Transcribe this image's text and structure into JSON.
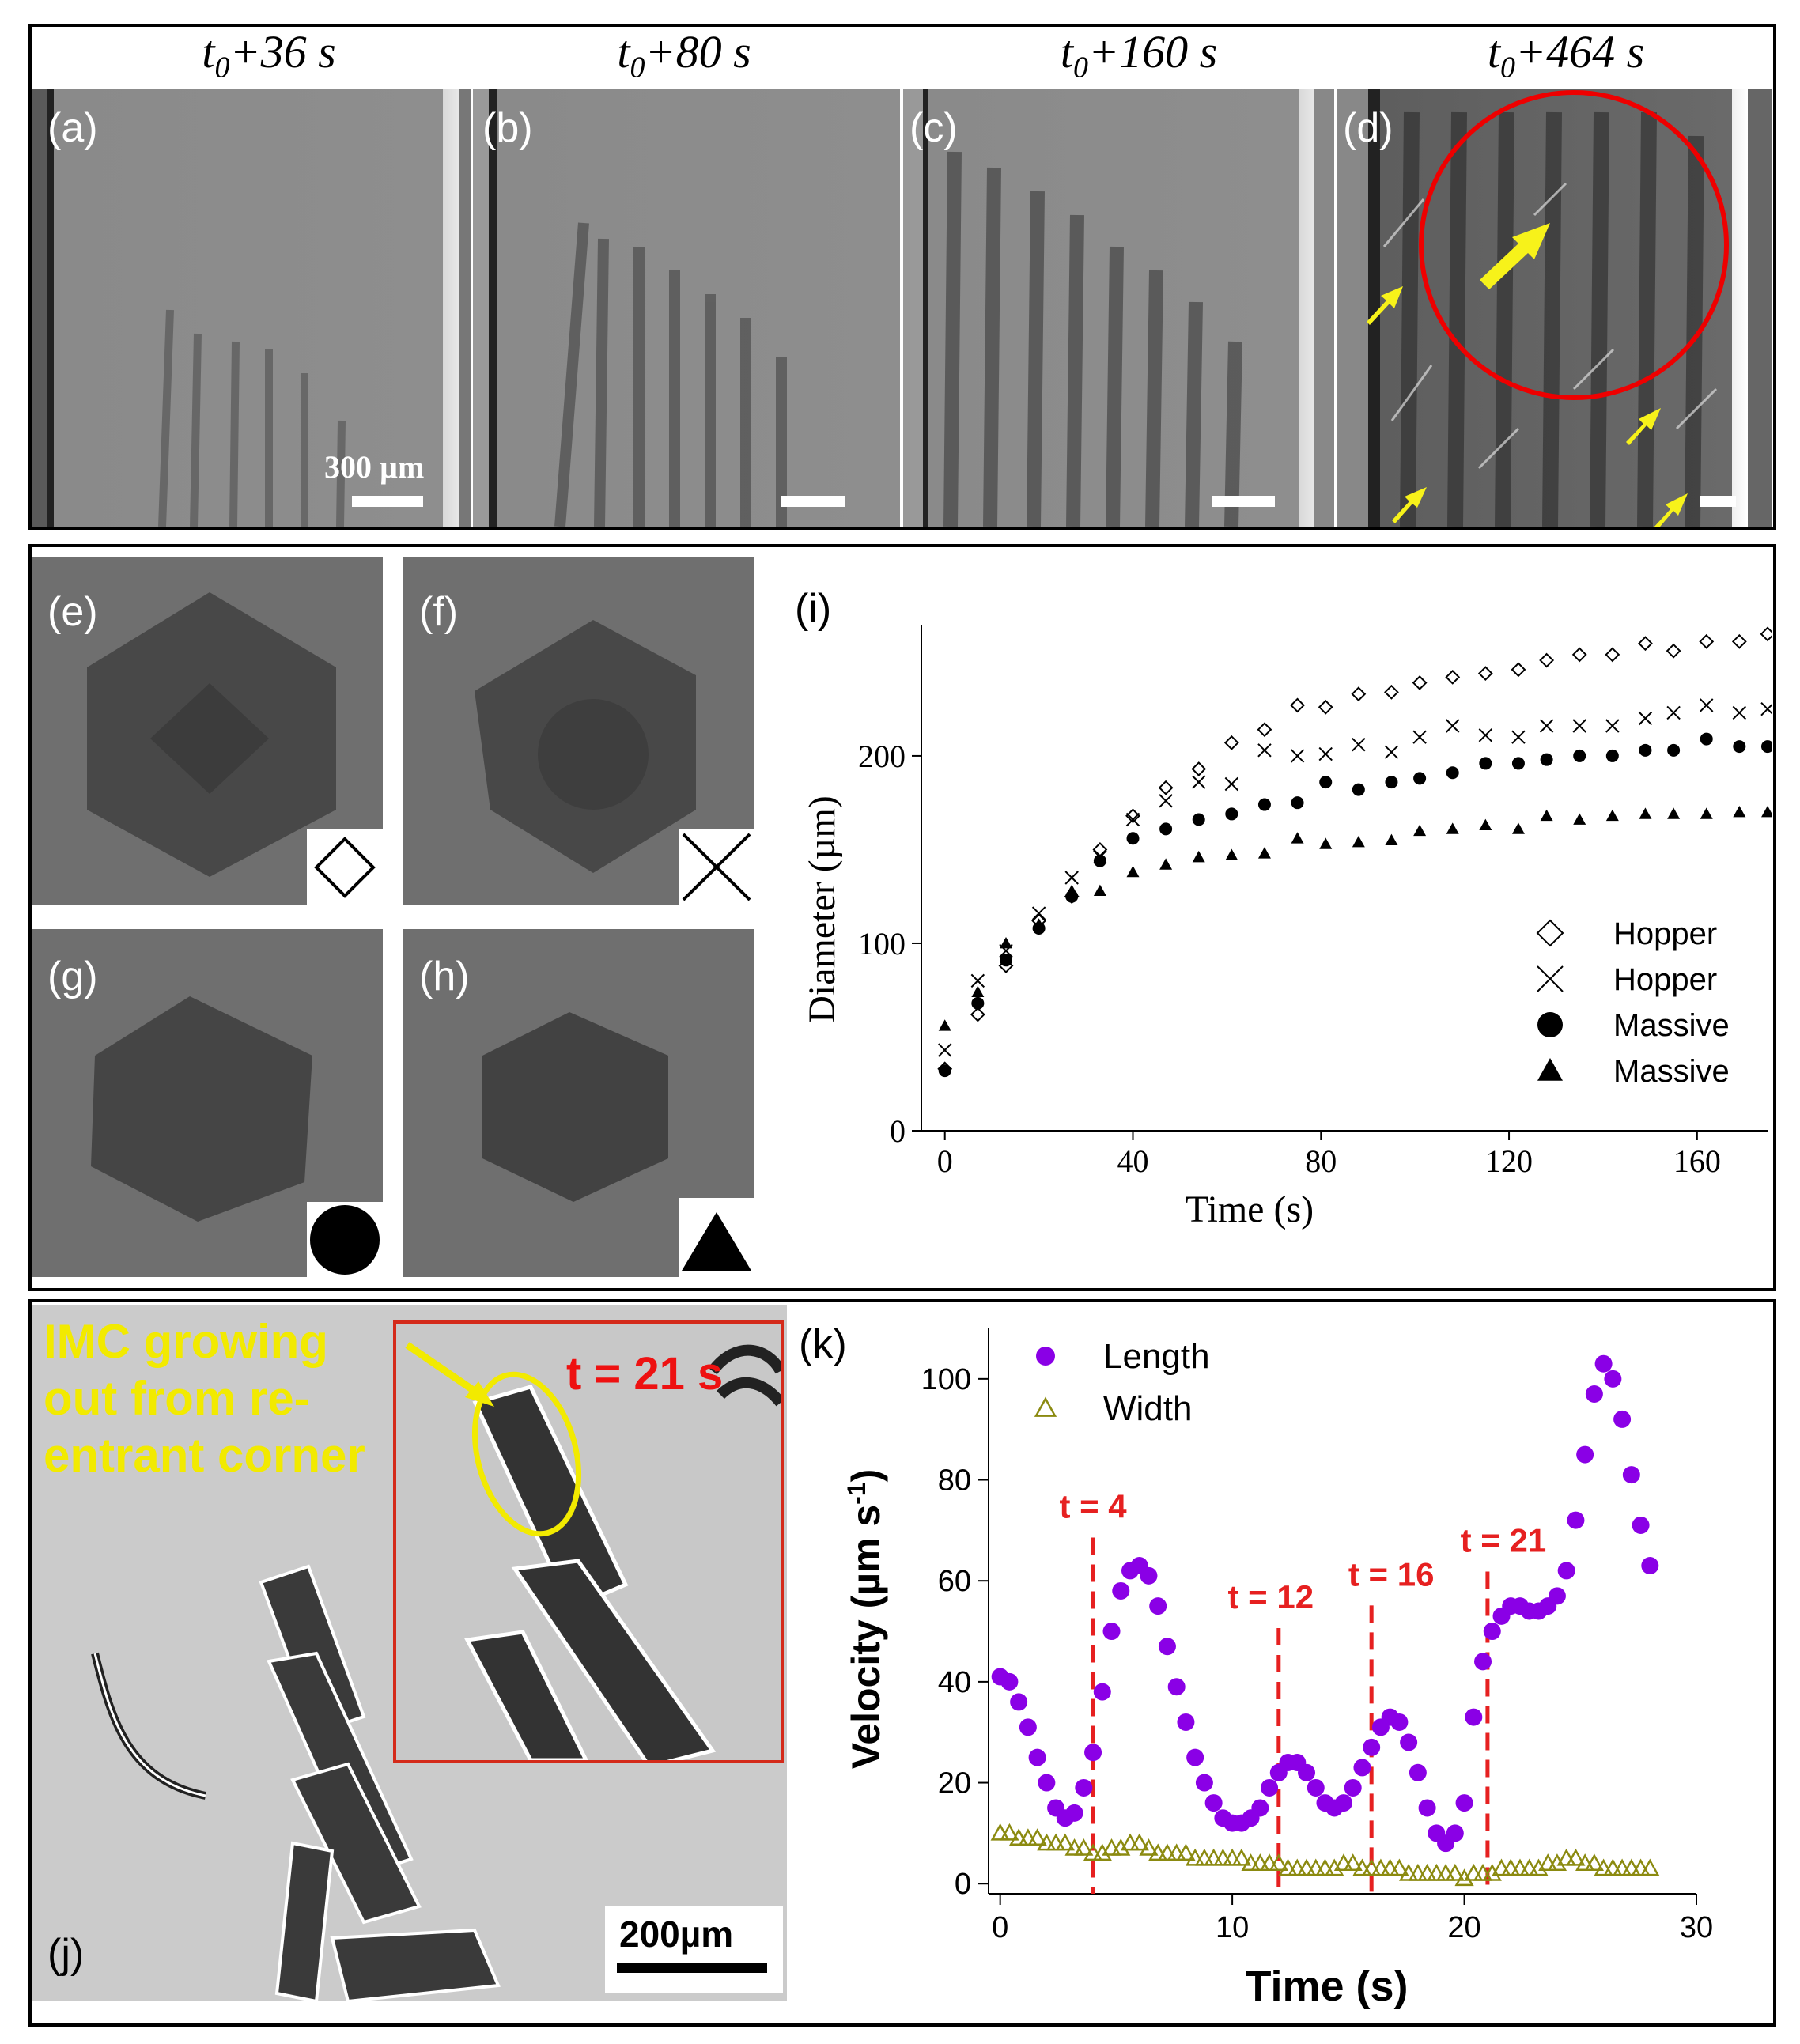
{
  "top_row": {
    "panels": [
      {
        "label": "(a)",
        "time_prefix": "t",
        "time_sub": "0",
        "time_suffix": "+36 s"
      },
      {
        "label": "(b)",
        "time_prefix": "t",
        "time_sub": "0",
        "time_suffix": "+80 s"
      },
      {
        "label": "(c)",
        "time_prefix": "t",
        "time_sub": "0",
        "time_suffix": "+160 s"
      },
      {
        "label": "(d)",
        "time_prefix": "t",
        "time_sub": "0",
        "time_suffix": "+464 s"
      }
    ],
    "scale_bar_label": "300 µm"
  },
  "middle_row": {
    "crystal_panels": [
      {
        "label": "(e)",
        "marker": "open-diamond"
      },
      {
        "label": "(f)",
        "marker": "cross"
      },
      {
        "label": "(g)",
        "marker": "filled-circle"
      },
      {
        "label": "(h)",
        "marker": "filled-triangle"
      }
    ],
    "chart_label": "(i)"
  },
  "bottom_row": {
    "image_label": "(j)",
    "annotation": [
      "IMC growing",
      "out from re-",
      "entrant corner"
    ],
    "inset_time": "t = 21 s",
    "scale_bar_label": "200µm",
    "chart_label": "(k)"
  },
  "colors": {
    "inset_frame": "#d42a1a",
    "annotation": "#f2ea00",
    "length_series": "#8a00e6",
    "width_series": "#8b8a10",
    "marker_lines": "#e62020"
  },
  "chart_data": [
    {
      "id": "i",
      "type": "scatter",
      "xlabel": "Time (s)",
      "ylabel": "Diameter (µm)",
      "xlim": [
        -5,
        175
      ],
      "ylim": [
        0,
        270
      ],
      "xticks": [
        0,
        40,
        80,
        120,
        160
      ],
      "yticks": [
        0,
        100,
        200
      ],
      "legend_position": "bottom-right",
      "x": [
        0,
        7,
        13,
        20,
        27,
        33,
        40,
        47,
        54,
        61,
        68,
        75,
        81,
        88,
        95,
        101,
        108,
        115,
        122,
        128,
        135,
        142,
        149,
        155,
        162,
        169,
        175
      ],
      "series": [
        {
          "name": "Hopper",
          "marker": "open-diamond",
          "values": [
            33,
            62,
            88,
            112,
            125,
            150,
            168,
            183,
            193,
            207,
            214,
            227,
            226,
            233,
            234,
            239,
            242,
            244,
            246,
            251,
            254,
            254,
            260,
            256,
            261,
            261,
            265
          ]
        },
        {
          "name": "Hopper",
          "marker": "cross",
          "values": [
            43,
            80,
            96,
            116,
            135,
            146,
            166,
            176,
            186,
            185,
            203,
            200,
            201,
            206,
            202,
            210,
            216,
            211,
            210,
            216,
            216,
            216,
            220,
            223,
            227,
            223,
            225
          ]
        },
        {
          "name": "Massive",
          "marker": "filled-circle",
          "values": [
            32,
            68,
            91,
            108,
            125,
            144,
            156,
            161,
            166,
            169,
            174,
            175,
            186,
            182,
            186,
            188,
            191,
            196,
            196,
            198,
            200,
            200,
            203,
            203,
            209,
            205,
            205
          ]
        },
        {
          "name": "Massive",
          "marker": "filled-triangle",
          "values": [
            56,
            74,
            100,
            110,
            128,
            128,
            138,
            142,
            146,
            147,
            148,
            156,
            153,
            154,
            155,
            160,
            161,
            163,
            161,
            168,
            166,
            168,
            169,
            169,
            169,
            170,
            170
          ]
        }
      ]
    },
    {
      "id": "k",
      "type": "scatter",
      "xlabel": "Time (s)",
      "ylabel": "Velocity (µm s",
      "ylabel_sup": "-1",
      "ylabel_close": ")",
      "xlim": [
        -0.5,
        30
      ],
      "ylim": [
        -2,
        110
      ],
      "xticks": [
        0,
        10,
        20,
        30
      ],
      "yticks": [
        0,
        20,
        40,
        60,
        80,
        100
      ],
      "legend_position": "top-left",
      "series": [
        {
          "name": "Length",
          "marker": "filled-circle",
          "x": [
            0,
            0.4,
            0.8,
            1.2,
            1.6,
            2.0,
            2.4,
            2.8,
            3.2,
            3.6,
            4.0,
            4.4,
            4.8,
            5.2,
            5.6,
            6.0,
            6.4,
            6.8,
            7.2,
            7.6,
            8.0,
            8.4,
            8.8,
            9.2,
            9.6,
            10.0,
            10.4,
            10.8,
            11.2,
            11.6,
            12.0,
            12.4,
            12.8,
            13.2,
            13.6,
            14.0,
            14.4,
            14.8,
            15.2,
            15.6,
            16.0,
            16.4,
            16.8,
            17.2,
            17.6,
            18.0,
            18.4,
            18.8,
            19.2,
            19.6,
            20.0,
            20.4,
            20.8,
            21.2,
            21.6,
            22.0,
            22.4,
            22.8,
            23.2,
            23.6,
            24.0,
            24.4,
            24.8,
            25.2,
            25.6,
            26.0,
            26.4,
            26.8,
            27.2,
            27.6,
            28.0
          ],
          "values": [
            41,
            40,
            36,
            31,
            25,
            20,
            15,
            13,
            14,
            19,
            26,
            38,
            50,
            58,
            62,
            63,
            61,
            55,
            47,
            39,
            32,
            25,
            20,
            16,
            13,
            12,
            12,
            13,
            15,
            19,
            22,
            24,
            24,
            22,
            19,
            16,
            15,
            16,
            19,
            23,
            27,
            31,
            33,
            32,
            28,
            22,
            15,
            10,
            8,
            10,
            16,
            33,
            44,
            50,
            53,
            55,
            55,
            54,
            54,
            55,
            57,
            62,
            72,
            85,
            97,
            103,
            100,
            92,
            81,
            71,
            63
          ]
        },
        {
          "name": "Width",
          "marker": "open-triangle",
          "x": [
            0,
            0.4,
            0.8,
            1.2,
            1.6,
            2.0,
            2.4,
            2.8,
            3.2,
            3.6,
            4.0,
            4.4,
            4.8,
            5.2,
            5.6,
            6.0,
            6.4,
            6.8,
            7.2,
            7.6,
            8.0,
            8.4,
            8.8,
            9.2,
            9.6,
            10.0,
            10.4,
            10.8,
            11.2,
            11.6,
            12.0,
            12.4,
            12.8,
            13.2,
            13.6,
            14.0,
            14.4,
            14.8,
            15.2,
            15.6,
            16.0,
            16.4,
            16.8,
            17.2,
            17.6,
            18.0,
            18.4,
            18.8,
            19.2,
            19.6,
            20.0,
            20.4,
            20.8,
            21.2,
            21.6,
            22.0,
            22.4,
            22.8,
            23.2,
            23.6,
            24.0,
            24.4,
            24.8,
            25.2,
            25.6,
            26.0,
            26.4,
            26.8,
            27.2,
            27.6,
            28.0
          ],
          "values": [
            10,
            10,
            9,
            9,
            9,
            8,
            8,
            8,
            7,
            7,
            6,
            6,
            7,
            7,
            8,
            8,
            7,
            6,
            6,
            6,
            6,
            5,
            5,
            5,
            5,
            5,
            5,
            4,
            4,
            4,
            4,
            3,
            3,
            3,
            3,
            3,
            3,
            4,
            4,
            3,
            3,
            3,
            3,
            3,
            2,
            2,
            2,
            2,
            2,
            2,
            1,
            2,
            2,
            2,
            3,
            3,
            3,
            3,
            3,
            4,
            4,
            5,
            5,
            4,
            4,
            3,
            3,
            3,
            3,
            3,
            3
          ]
        }
      ],
      "vertical_markers": [
        {
          "x": 4,
          "label": "t = 4"
        },
        {
          "x": 12,
          "label": "t = 12"
        },
        {
          "x": 16,
          "label": "t = 16"
        },
        {
          "x": 21,
          "label": "t = 21"
        }
      ]
    }
  ]
}
